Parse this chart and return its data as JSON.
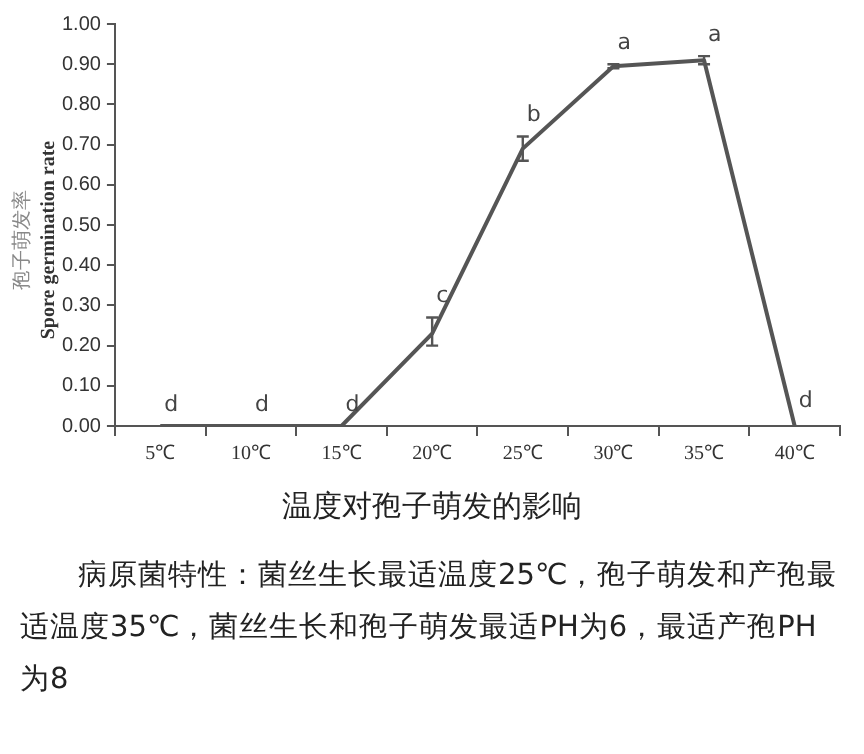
{
  "chart_data": {
    "type": "line",
    "title": "温度对孢子萌发的影响",
    "ylabel": "孢子萌发率\nSpore germination rate",
    "categories": [
      "5℃",
      "10℃",
      "15℃",
      "20℃",
      "25℃",
      "30℃",
      "35℃",
      "40℃"
    ],
    "series": [
      {
        "color": "#555555",
        "values": [
          0,
          0,
          0,
          0.23,
          0.69,
          0.895,
          0.91,
          0
        ],
        "errors": [
          null,
          null,
          null,
          [
            0.2,
            0.27
          ],
          [
            0.66,
            0.72
          ],
          [
            0.89,
            0.9
          ],
          [
            0.9,
            0.92
          ],
          null
        ]
      }
    ],
    "ylim": [
      0,
      1
    ],
    "yticks": [
      {
        "value": 0,
        "label": "0.00"
      },
      {
        "value": 0.1,
        "label": "0.10"
      },
      {
        "value": 0.2,
        "label": "0.20"
      },
      {
        "value": 0.3,
        "label": "0.30"
      },
      {
        "value": 0.4,
        "label": "0.40"
      },
      {
        "value": 0.5,
        "label": "0.50"
      },
      {
        "value": 0.6,
        "label": "0.60"
      },
      {
        "value": 0.7,
        "label": "0.70"
      },
      {
        "value": 0.8,
        "label": "0.80"
      },
      {
        "value": 0.9,
        "label": "0.90"
      },
      {
        "value": 1,
        "label": "1.00"
      }
    ],
    "grid": false,
    "legend": false,
    "marker": "none",
    "line_style": "solid",
    "annotations": [
      {
        "text": "d",
        "x": "5℃",
        "y": 0
      },
      {
        "text": "d",
        "x": "10℃",
        "y": 0
      },
      {
        "text": "d",
        "x": "15℃",
        "y": 0
      },
      {
        "text": "c",
        "x": "20℃",
        "y": 0.27
      },
      {
        "text": "b",
        "x": "25℃",
        "y": 0.72
      },
      {
        "text": "a",
        "x": "30℃",
        "y": 0.9
      },
      {
        "text": "a",
        "x": "35℃",
        "y": 0.92
      },
      {
        "text": "d",
        "x": "40℃",
        "y": 0.01
      },
      "病原菌特性：菌丝生长最适温度25℃，孢子萌发和产孢最适温度35℃，菌丝生长和孢子萌发最适PH为6，最适产孢PH为8"
    ]
  }
}
